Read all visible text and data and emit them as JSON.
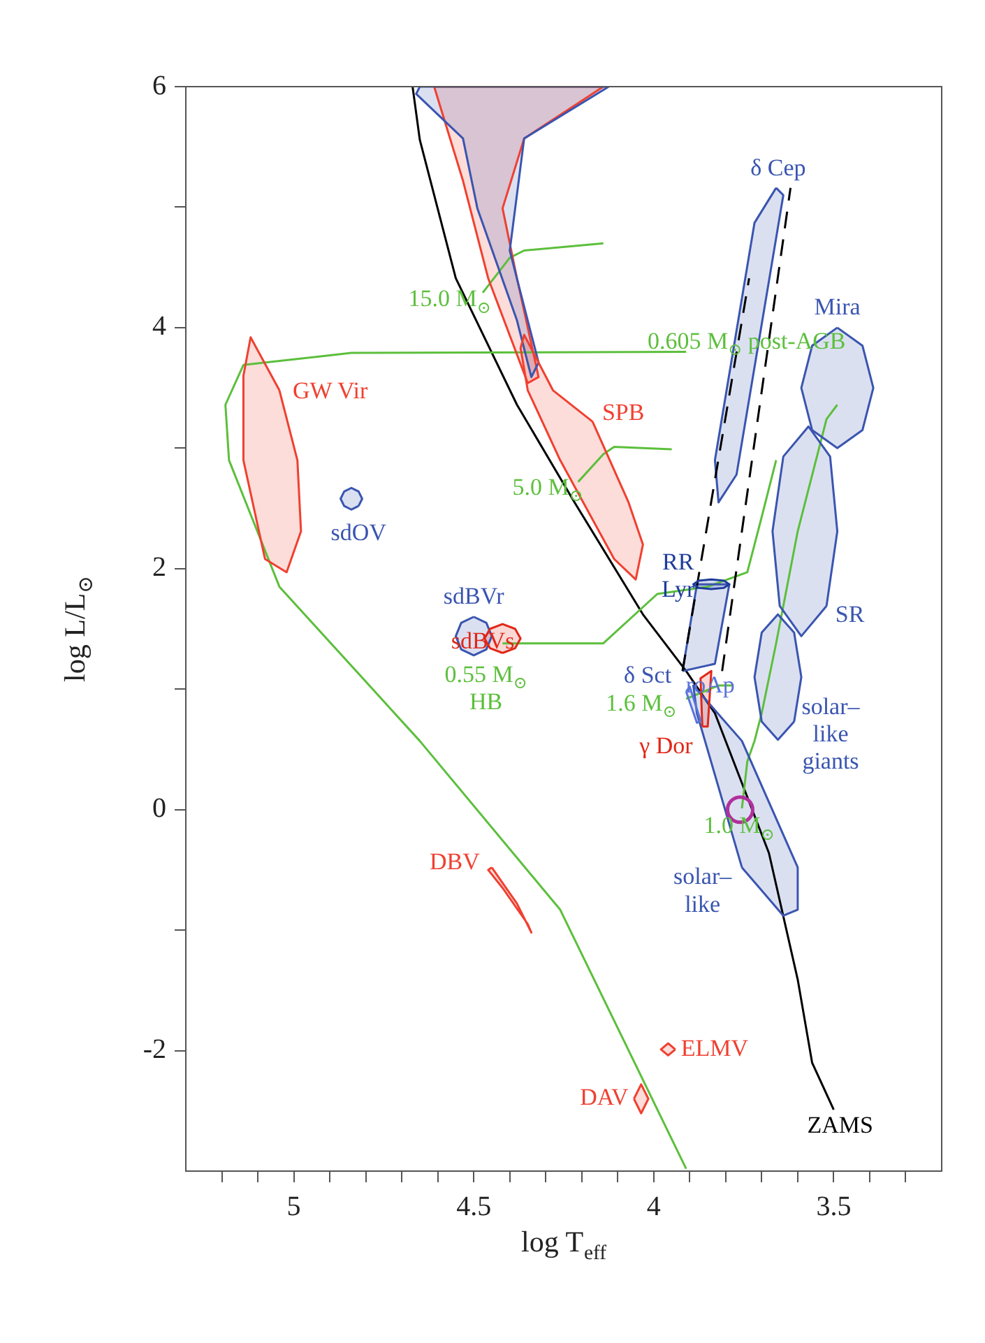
{
  "chart_data": {
    "type": "line",
    "xlabel": "log T$_{eff}$",
    "ylabel": "log L/L$_{⊙}$",
    "xlim": [
      5.3,
      3.2
    ],
    "ylim": [
      -3,
      6
    ],
    "xticks": [
      {
        "value": 5.2,
        "label": null
      },
      {
        "value": 5.1,
        "label": null
      },
      5,
      {
        "value": 4.9,
        "label": null
      },
      {
        "value": 4.8,
        "label": null
      },
      {
        "value": 4.7,
        "label": null
      },
      {
        "value": 4.6,
        "label": null
      },
      4.5,
      {
        "value": 4.4,
        "label": null
      },
      {
        "value": 4.3,
        "label": null
      },
      {
        "value": 4.2,
        "label": null
      },
      {
        "value": 4.1,
        "label": null
      },
      4,
      {
        "value": 3.9,
        "label": null
      },
      {
        "value": 3.8,
        "label": null
      },
      {
        "value": 3.7,
        "label": null
      },
      {
        "value": 3.6,
        "label": null
      },
      3.5,
      {
        "value": 3.4,
        "label": null
      },
      {
        "value": 3.3,
        "label": null
      }
    ],
    "yticks": [
      -2,
      {
        "value": -1,
        "label": null
      },
      0,
      {
        "value": 1,
        "label": null
      },
      2,
      {
        "value": 3,
        "label": null
      },
      4,
      {
        "value": 5,
        "label": null
      },
      6
    ],
    "grid": false,
    "legend": false,
    "marker": "none",
    "line_style": "solid",
    "series": [
      {
        "name": "ZAMS",
        "color": "#000000",
        "x": [
          3.5,
          3.56,
          3.6,
          3.68,
          3.755,
          3.83,
          3.91,
          4.03,
          4.22,
          4.38,
          4.55,
          4.65,
          4.67
        ],
        "values": [
          -2.49,
          -2.1,
          -1.41,
          -0.36,
          0.22,
          0.8,
          1.15,
          1.62,
          2.55,
          3.36,
          4.41,
          5.56,
          6.0
        ]
      },
      {
        "name": "15.0 M$_{⊙}$",
        "color": "#5cbf3c",
        "x": [
          4.475,
          4.4,
          4.36,
          4.14
        ],
        "values": [
          4.29,
          4.58,
          4.64,
          4.7
        ]
      },
      {
        "name": "5.0 M$_{⊙}$",
        "color": "#5cbf3c",
        "x": [
          4.21,
          4.14,
          4.11,
          3.95
        ],
        "values": [
          2.72,
          2.95,
          3.01,
          2.99
        ]
      },
      {
        "name": "0.605 M$_{⊙}$ post-AGB",
        "color": "#5cbf3c",
        "x": [
          3.91,
          4.84,
          5.14,
          5.19,
          5.18,
          5.04,
          4.65,
          4.26,
          3.91
        ],
        "values": [
          3.8,
          3.79,
          3.69,
          3.36,
          2.9,
          1.85,
          0.57,
          -0.83,
          -2.98
        ]
      },
      {
        "name": "0.55 M$_{⊙}$\nHB",
        "color": "#5cbf3c",
        "x": [
          4.42,
          4.14,
          3.99,
          3.85,
          3.74,
          3.7,
          3.66
        ],
        "values": [
          1.38,
          1.38,
          1.79,
          1.85,
          1.97,
          2.43,
          2.9
        ]
      },
      {
        "name": "1.6 M$_{⊙}$",
        "color": "#5cbf3c",
        "x": [
          3.91,
          3.82,
          3.78
        ],
        "values": [
          0.92,
          1.03,
          1.03
        ]
      },
      {
        "name": "1.0 M$_{⊙}$",
        "color": "#5cbf3c",
        "x": [
          3.755,
          3.74,
          3.72,
          3.7,
          3.66,
          3.6,
          3.52,
          3.49
        ],
        "values": [
          0.01,
          0.4,
          0.57,
          0.8,
          1.38,
          2.31,
          3.24,
          3.36
        ]
      },
      {
        "type": "area",
        "color": "#f04030",
        "x": [
          4.61,
          4.14,
          4.36,
          4.42,
          4.38,
          4.32,
          4.35,
          4.46,
          4.53,
          4.61
        ],
        "values": [
          6.0,
          6.0,
          5.57,
          4.99,
          4.41,
          3.59,
          3.54,
          4.41,
          5.22,
          6.0
        ]
      },
      {
        "type": "area",
        "color": "#3a55b0",
        "x": [
          4.65,
          4.125,
          4.36,
          4.4,
          4.32,
          4.34,
          4.38,
          4.49,
          4.53,
          4.66,
          4.65
        ],
        "values": [
          6.0,
          6.0,
          5.57,
          4.64,
          3.71,
          3.59,
          4.06,
          4.99,
          5.57,
          5.94,
          6.0
        ]
      },
      {
        "type": "area",
        "name": "SPB",
        "color": "#f04030",
        "x": [
          4.17,
          4.07,
          4.03,
          4.05,
          4.11,
          4.26,
          4.35,
          4.37,
          4.36,
          4.28,
          4.17
        ],
        "values": [
          3.22,
          2.55,
          2.2,
          1.91,
          2.08,
          2.9,
          3.48,
          3.83,
          3.94,
          3.48,
          3.22
        ]
      },
      {
        "type": "area",
        "name": "GW Vir",
        "color": "#f04030",
        "x": [
          5.04,
          4.99,
          4.98,
          5.02,
          5.08,
          5.14,
          5.14,
          5.12,
          5.04
        ],
        "values": [
          3.48,
          2.9,
          2.31,
          1.97,
          2.08,
          2.9,
          3.6,
          3.92,
          3.48
        ]
      },
      {
        "type": "area",
        "name": "sdOV",
        "color": "#3a55b0",
        "x": [
          4.82,
          4.84,
          4.86,
          4.87,
          4.86,
          4.84,
          4.82,
          4.81,
          4.82
        ],
        "values": [
          2.52,
          2.49,
          2.52,
          2.58,
          2.64,
          2.67,
          2.64,
          2.58,
          2.52
        ]
      },
      {
        "type": "area",
        "name": "sdBVr",
        "color": "#3a55b0",
        "x": [
          4.5,
          4.465,
          4.45,
          4.465,
          4.5,
          4.535,
          4.55,
          4.535,
          4.5
        ],
        "values": [
          1.6,
          1.55,
          1.44,
          1.33,
          1.28,
          1.33,
          1.44,
          1.55,
          1.6
        ]
      },
      {
        "type": "area",
        "name": "DBV",
        "color": "#f04030",
        "x": [
          4.45,
          4.38,
          4.34,
          4.35,
          4.42,
          4.46,
          4.45
        ],
        "values": [
          -0.48,
          -0.78,
          -1.02,
          -0.95,
          -0.65,
          -0.5,
          -0.48
        ]
      },
      {
        "type": "area",
        "name": "ELMV",
        "color": "#f04030",
        "x": [
          3.94,
          3.96,
          3.98,
          3.96,
          3.94
        ],
        "values": [
          -1.99,
          -2.04,
          -1.99,
          -1.94,
          -1.99
        ]
      },
      {
        "type": "area",
        "name": "DAV",
        "color": "#f04030",
        "x": [
          4.055,
          4.035,
          4.015,
          4.035,
          4.055
        ],
        "values": [
          -2.4,
          -2.28,
          -2.4,
          -2.52,
          -2.4
        ]
      },
      {
        "type": "area",
        "name": "δ Cep",
        "color": "#3a55b0",
        "x": [
          3.66,
          3.64,
          3.77,
          3.82,
          3.83,
          3.72,
          3.66
        ],
        "values": [
          5.16,
          5.1,
          2.78,
          2.55,
          2.9,
          4.87,
          5.16
        ]
      },
      {
        "type": "area",
        "name": "Mira",
        "color": "#3a55b0",
        "x": [
          3.49,
          3.42,
          3.39,
          3.42,
          3.49,
          3.56,
          3.59,
          3.56,
          3.49
        ],
        "values": [
          4.0,
          3.85,
          3.5,
          3.15,
          3.0,
          3.15,
          3.5,
          3.85,
          4.0
        ]
      },
      {
        "type": "area",
        "name": "SR",
        "color": "#3a55b0",
        "x": [
          3.52,
          3.59,
          3.65,
          3.67,
          3.64,
          3.57,
          3.51,
          3.49,
          3.52
        ],
        "values": [
          1.69,
          1.44,
          1.69,
          2.31,
          2.93,
          3.18,
          2.93,
          2.31,
          1.69
        ]
      },
      {
        "type": "area",
        "name": "solar–\nlike\ngiants",
        "color": "#3a55b0",
        "x": [
          3.61,
          3.655,
          3.7,
          3.72,
          3.7,
          3.655,
          3.61,
          3.59,
          3.61
        ],
        "values": [
          0.73,
          0.58,
          0.73,
          1.1,
          1.47,
          1.62,
          1.47,
          1.1,
          0.73
        ]
      },
      {
        "type": "area",
        "name": "solar–\nlike",
        "color": "#3a55b0",
        "x": [
          3.755,
          3.88,
          3.89,
          3.755,
          3.6,
          3.6,
          3.64,
          3.755
        ],
        "values": [
          -0.48,
          0.8,
          1.03,
          0.57,
          -0.48,
          -0.83,
          -0.88,
          -0.48
        ]
      },
      {
        "type": "area",
        "name": "δ Sct",
        "color": "#3a55b0",
        "x": [
          3.92,
          3.88,
          3.79,
          3.83,
          3.92
        ],
        "values": [
          1.15,
          1.87,
          1.87,
          1.21,
          1.15
        ]
      },
      {
        "color": "#000000",
        "line_style": "dashed",
        "x": [
          3.92,
          3.735
        ],
        "values": [
          1.15,
          4.41
        ]
      },
      {
        "color": "#000000",
        "line_style": "dashed",
        "x": [
          3.81,
          3.62
        ],
        "values": [
          1.15,
          5.16
        ]
      },
      {
        "type": "area",
        "name": "sdBVs",
        "color": "#e02818",
        "x": [
          4.42,
          4.385,
          4.37,
          4.385,
          4.42,
          4.455,
          4.47,
          4.455,
          4.42
        ],
        "values": [
          1.3,
          1.34,
          1.42,
          1.5,
          1.54,
          1.5,
          1.42,
          1.34,
          1.3
        ]
      },
      {
        "type": "area",
        "name": "RR\nLyr",
        "color": "#1e3c9c",
        "x": [
          3.875,
          3.84,
          3.805,
          3.79,
          3.805,
          3.84,
          3.875,
          3.89,
          3.875
        ],
        "values": [
          1.9,
          1.91,
          1.9,
          1.87,
          1.84,
          1.83,
          1.84,
          1.87,
          1.9
        ]
      },
      {
        "type": "area",
        "name": "γ Dor",
        "color": "#e02818",
        "x": [
          3.865,
          3.87,
          3.84,
          3.85,
          3.865
        ],
        "values": [
          0.69,
          1.09,
          1.15,
          0.69,
          0.69
        ]
      },
      {
        "type": "area",
        "name": "roAp",
        "color": "#5a74d8",
        "x": [
          3.91,
          3.9,
          3.87,
          3.88,
          3.91
        ],
        "values": [
          0.98,
          1.02,
          0.74,
          0.72,
          0.98
        ]
      },
      {
        "type": "scatter",
        "marker": "circle",
        "color": "#b0309c",
        "x": [
          3.76
        ],
        "values": [
          0
        ]
      }
    ]
  }
}
